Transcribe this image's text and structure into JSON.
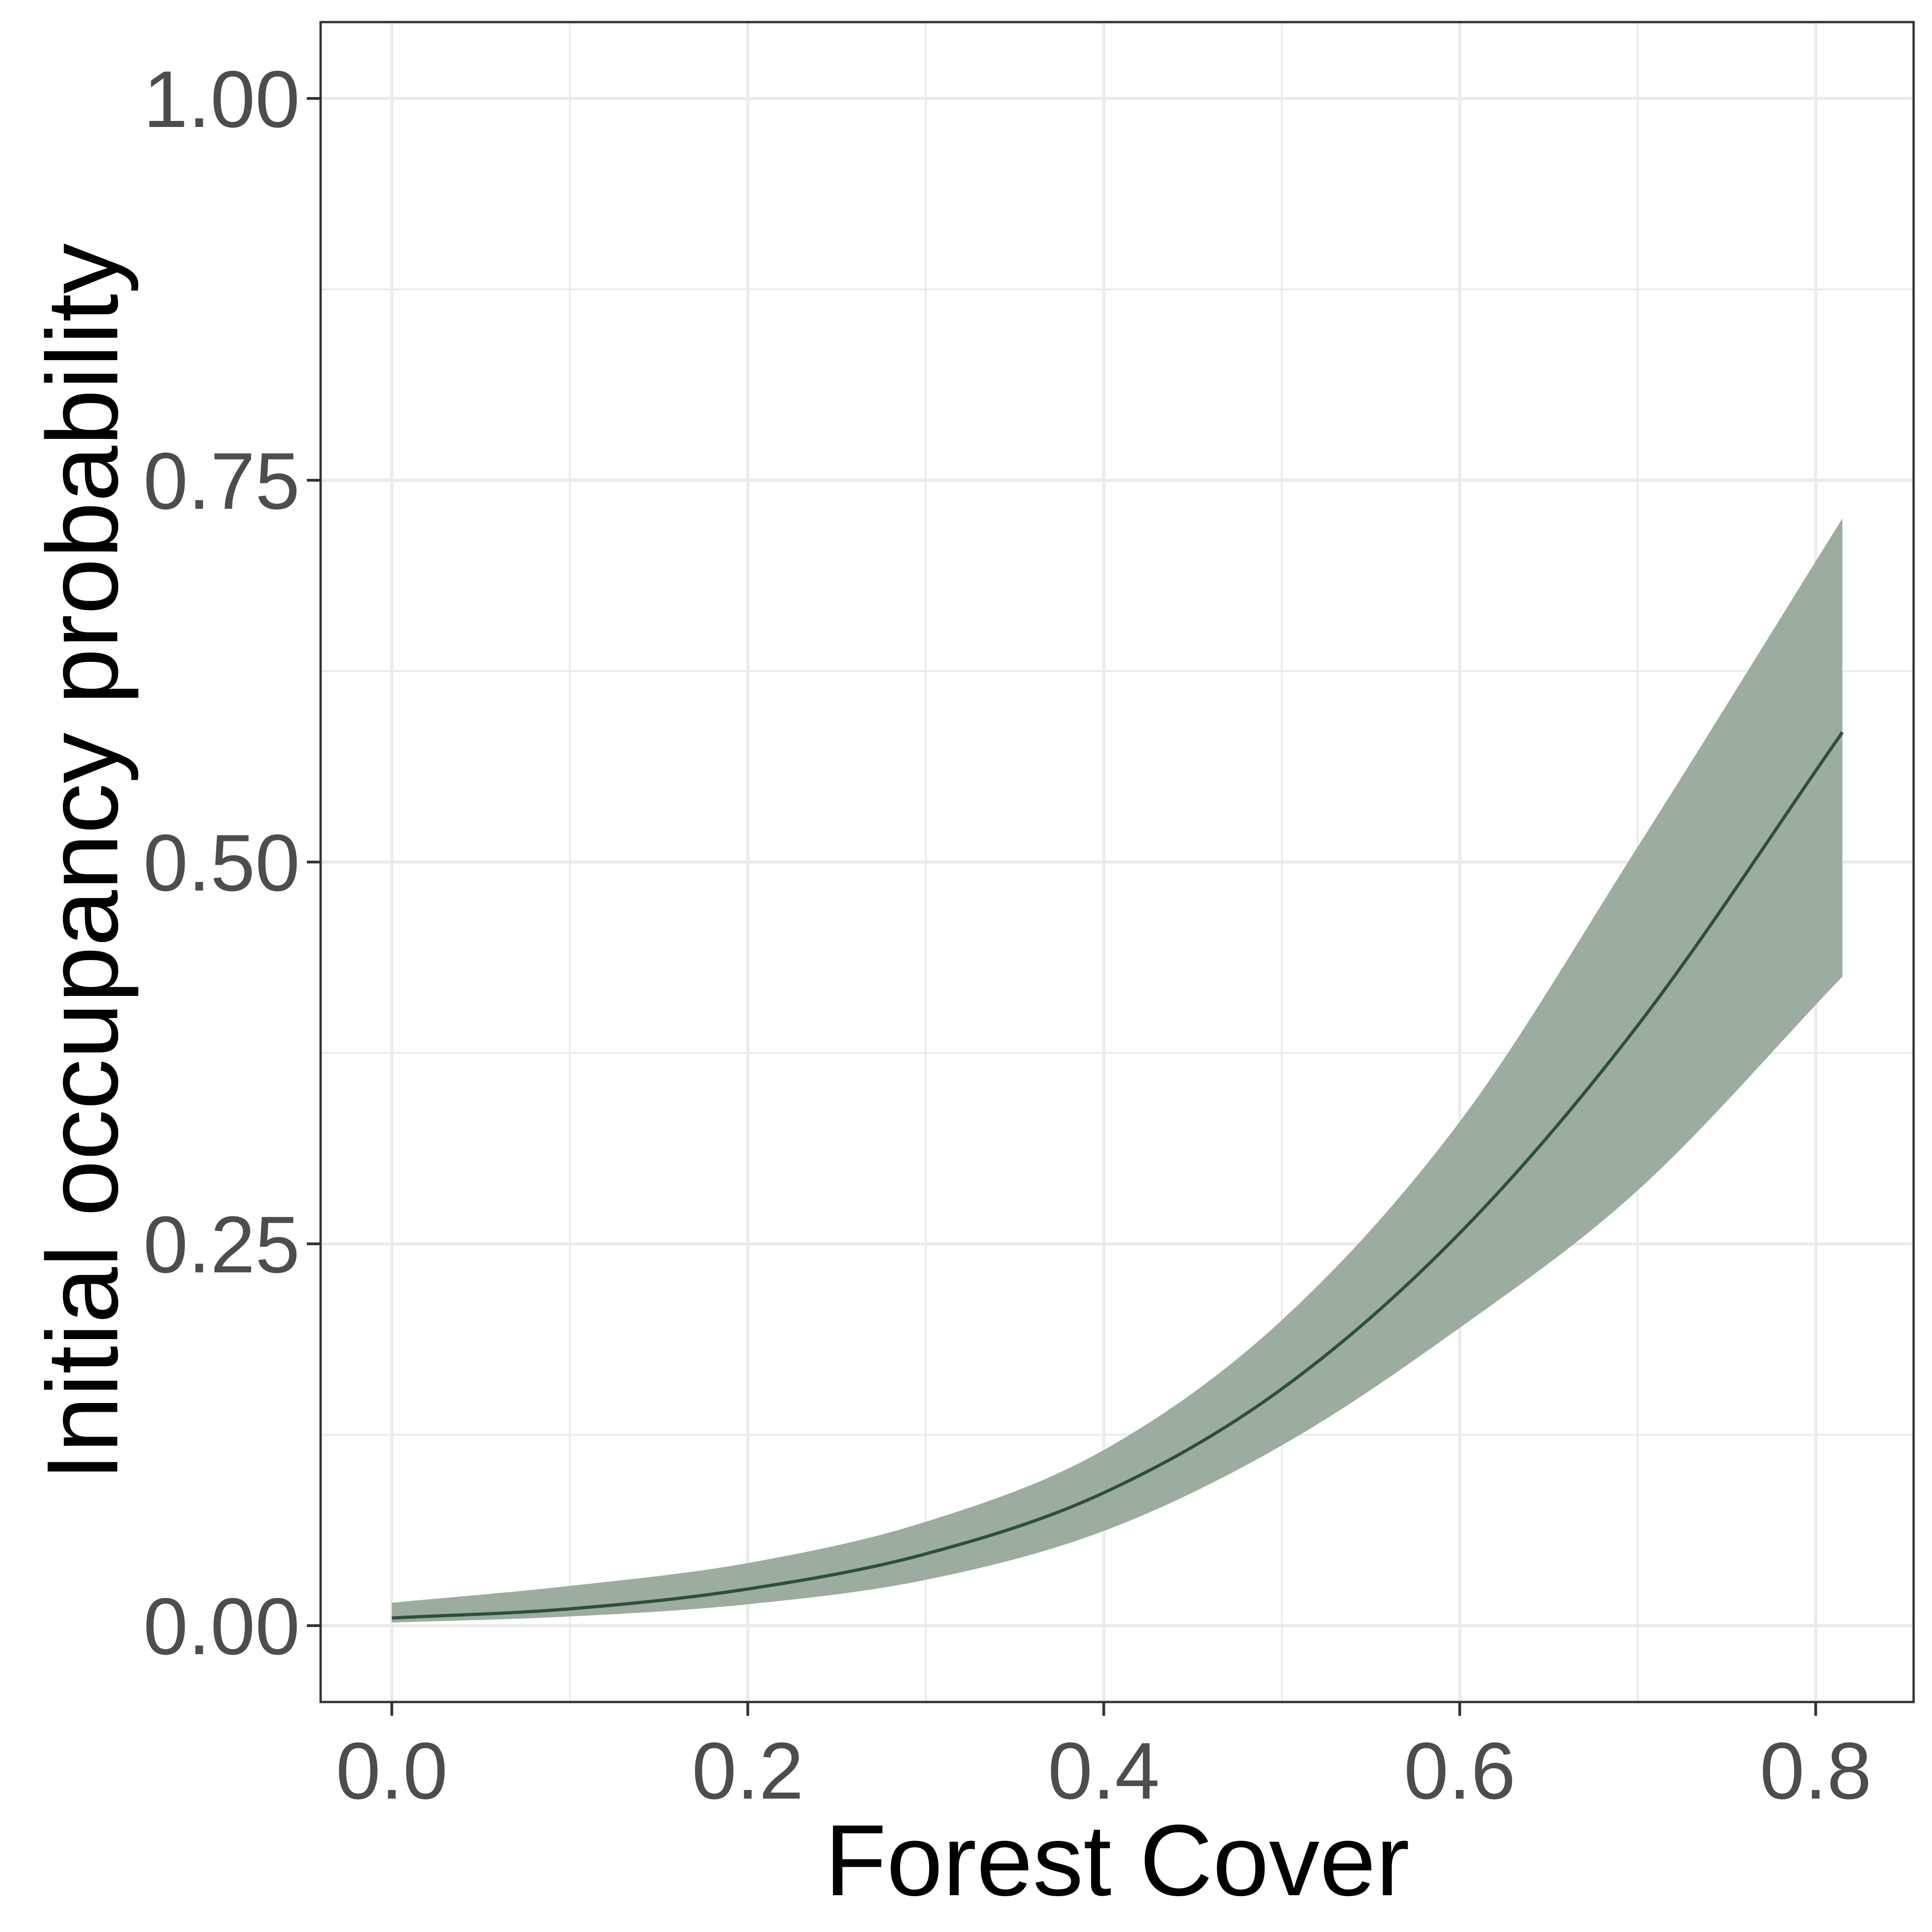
{
  "chart_data": {
    "type": "line",
    "xlabel": "Forest Cover",
    "ylabel": "Initial occupancy probability",
    "xlim": [
      -0.04,
      0.855
    ],
    "ylim": [
      -0.05,
      1.05
    ],
    "x_ticks": [
      0.0,
      0.2,
      0.4,
      0.6,
      0.8
    ],
    "x_tick_labels": [
      "0.0",
      "0.2",
      "0.4",
      "0.6",
      "0.8"
    ],
    "y_ticks": [
      0.0,
      0.25,
      0.5,
      0.75,
      1.0
    ],
    "y_tick_labels": [
      "0.00",
      "0.25",
      "0.50",
      "0.75",
      "1.00"
    ],
    "grid": true,
    "series": [
      {
        "x": [
          0.0,
          0.1,
          0.2,
          0.3,
          0.4,
          0.5,
          0.6,
          0.7,
          0.815
        ],
        "y": [
          0.005,
          0.011,
          0.024,
          0.047,
          0.087,
          0.155,
          0.257,
          0.393,
          0.585
        ],
        "lower": [
          0.002,
          0.006,
          0.014,
          0.03,
          0.062,
          0.118,
          0.195,
          0.285,
          0.425
        ],
        "upper": [
          0.015,
          0.026,
          0.041,
          0.068,
          0.115,
          0.2,
          0.33,
          0.51,
          0.725
        ]
      }
    ],
    "colors": {
      "line": "#2f4f3a",
      "ribbon": "#9cac9f",
      "grid": "#ebebeb",
      "panel_border": "#333333"
    }
  }
}
